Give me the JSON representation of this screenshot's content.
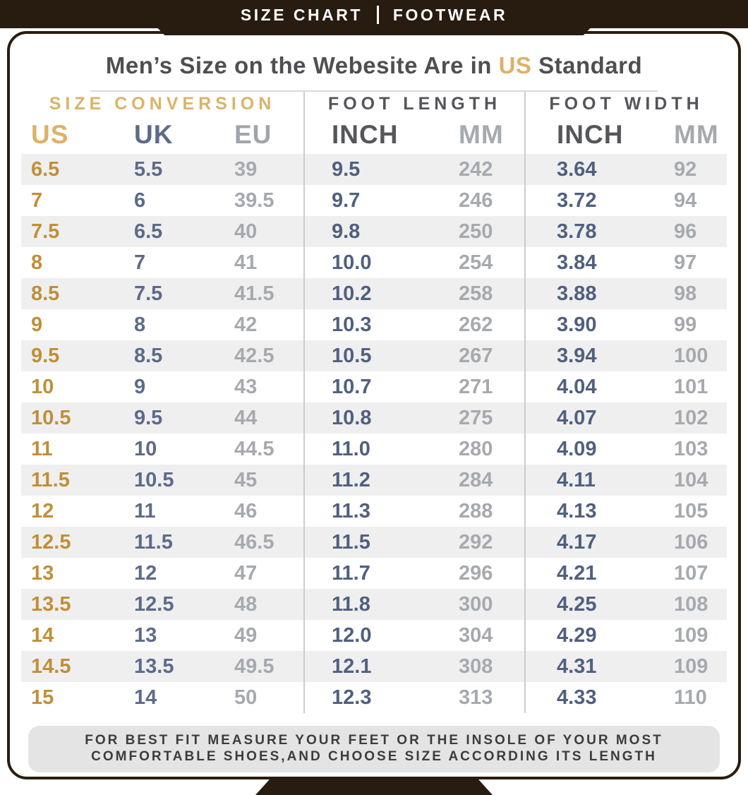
{
  "banner": {
    "left": "SIZE CHART",
    "right": "FOOTWEAR"
  },
  "heading": {
    "prefix": "Men’s Size on the Webesite Are in ",
    "highlight": "US",
    "suffix": " Standard"
  },
  "chart_data": {
    "type": "table",
    "title": "Men’s Size on the Webesite Are in US Standard",
    "groups": [
      {
        "label": "SIZE CONVERSION",
        "span": 3
      },
      {
        "label": "FOOT LENGTH",
        "span": 2
      },
      {
        "label": "FOOT WIDTH",
        "span": 2
      }
    ],
    "columns": [
      {
        "label": "US",
        "role": "us"
      },
      {
        "label": "UK",
        "role": "uk"
      },
      {
        "label": "EU",
        "role": "eu"
      },
      {
        "label": "INCH",
        "role": "inch"
      },
      {
        "label": "MM",
        "role": "mm"
      },
      {
        "label": "INCH",
        "role": "inch"
      },
      {
        "label": "MM",
        "role": "mm"
      }
    ],
    "rows": [
      [
        "6.5",
        "5.5",
        "39",
        "9.5",
        "242",
        "3.64",
        "92"
      ],
      [
        "7",
        "6",
        "39.5",
        "9.7",
        "246",
        "3.72",
        "94"
      ],
      [
        "7.5",
        "6.5",
        "40",
        "9.8",
        "250",
        "3.78",
        "96"
      ],
      [
        "8",
        "7",
        "41",
        "10.0",
        "254",
        "3.84",
        "97"
      ],
      [
        "8.5",
        "7.5",
        "41.5",
        "10.2",
        "258",
        "3.88",
        "98"
      ],
      [
        "9",
        "8",
        "42",
        "10.3",
        "262",
        "3.90",
        "99"
      ],
      [
        "9.5",
        "8.5",
        "42.5",
        "10.5",
        "267",
        "3.94",
        "100"
      ],
      [
        "10",
        "9",
        "43",
        "10.7",
        "271",
        "4.04",
        "101"
      ],
      [
        "10.5",
        "9.5",
        "44",
        "10.8",
        "275",
        "4.07",
        "102"
      ],
      [
        "11",
        "10",
        "44.5",
        "11.0",
        "280",
        "4.09",
        "103"
      ],
      [
        "11.5",
        "10.5",
        "45",
        "11.2",
        "284",
        "4.11",
        "104"
      ],
      [
        "12",
        "11",
        "46",
        "11.3",
        "288",
        "4.13",
        "105"
      ],
      [
        "12.5",
        "11.5",
        "46.5",
        "11.5",
        "292",
        "4.17",
        "106"
      ],
      [
        "13",
        "12",
        "47",
        "11.7",
        "296",
        "4.21",
        "107"
      ],
      [
        "13.5",
        "12.5",
        "48",
        "11.8",
        "300",
        "4.25",
        "108"
      ],
      [
        "14",
        "13",
        "49",
        "12.0",
        "304",
        "4.29",
        "109"
      ],
      [
        "14.5",
        "13.5",
        "49.5",
        "12.1",
        "308",
        "4.31",
        "109"
      ],
      [
        "15",
        "14",
        "50",
        "12.3",
        "313",
        "4.33",
        "110"
      ]
    ]
  },
  "footer": {
    "line1": "FOR BEST FIT MEASURE YOUR FEET OR THE INSOLE OF YOUR MOST",
    "line2": "COMFORTABLE SHOES,AND CHOOSE SIZE ACCORDING ITS LENGTH"
  },
  "colors": {
    "banner_bg": "#281b10",
    "tan_light": "#dcb268",
    "tan_dark": "#c18f38",
    "blue_gray": "#5d6b8a",
    "navy": "#50607f",
    "gray_value": "#a6aaaf",
    "dark_gray": "#54555a",
    "stripe": "#efeff0",
    "divider": "#c9ccd0",
    "footer_bg": "#e4e4e5"
  }
}
